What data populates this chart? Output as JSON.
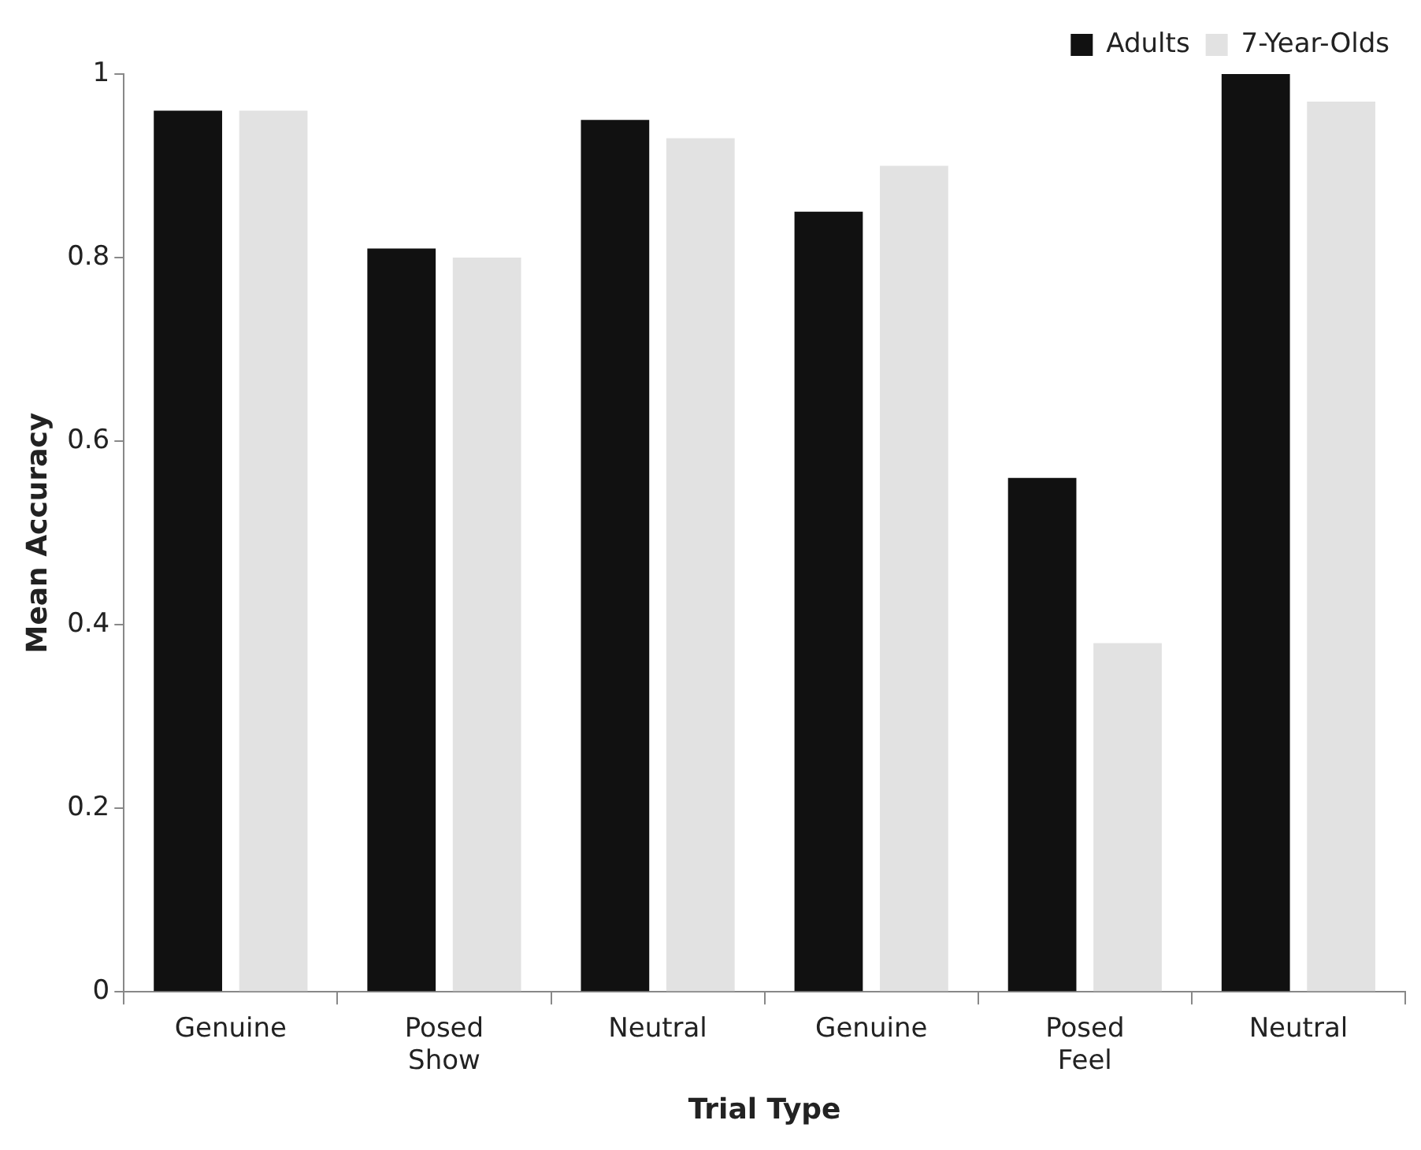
{
  "chart_data": {
    "type": "bar",
    "xlabel": "Trial Type",
    "ylabel": "Mean Accuracy",
    "categories": [
      "Genuine",
      "Posed\nShow",
      "Neutral",
      "Genuine",
      "Posed\nFeel",
      "Neutral"
    ],
    "series": [
      {
        "name": "Adults",
        "color": "#111111",
        "values": [
          0.96,
          0.81,
          0.95,
          0.85,
          0.56,
          1.0
        ]
      },
      {
        "name": "7-Year-Olds",
        "color": "#e2e2e2",
        "values": [
          0.96,
          0.8,
          0.93,
          0.9,
          0.38,
          0.97
        ]
      }
    ],
    "ylim": [
      0,
      1
    ],
    "yticks": [
      0,
      {
        "value": 0.2,
        "label": "0.2"
      },
      {
        "value": 0.4,
        "label": "0.4"
      },
      {
        "value": 0.6,
        "label": "0.6"
      },
      {
        "value": 0.8,
        "label": "0.8"
      },
      1
    ],
    "grid": false,
    "legend": "top right"
  }
}
